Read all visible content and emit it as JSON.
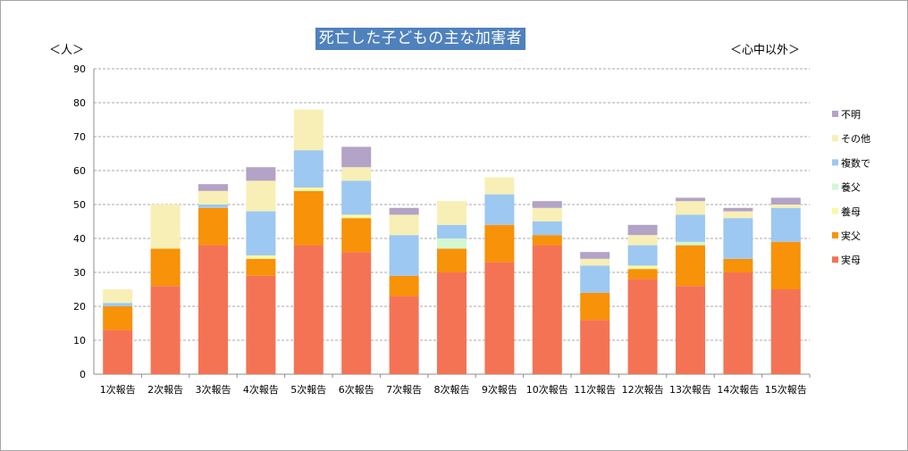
{
  "chart_data": {
    "type": "bar",
    "stacked": true,
    "title": "死亡した子どもの主な加害者",
    "ylabel": "＜人＞",
    "subtitle": "＜心中以外＞",
    "ylim": [
      0,
      90
    ],
    "yticks": [
      0,
      10,
      20,
      30,
      40,
      50,
      60,
      70,
      80,
      90
    ],
    "grid": true,
    "legend_position": "right",
    "categories": [
      "1次報告",
      "2次報告",
      "3次報告",
      "4次報告",
      "5次報告",
      "6次報告",
      "7次報告",
      "8次報告",
      "9次報告",
      "10次報告",
      "11次報告",
      "12次報告",
      "13次報告",
      "14次報告",
      "15次報告"
    ],
    "series": [
      {
        "name": "実母",
        "color": "#f47355",
        "values": [
          13,
          26,
          38,
          29,
          38,
          36,
          23,
          30,
          33,
          38,
          16,
          28,
          26,
          30,
          25
        ]
      },
      {
        "name": "実父",
        "color": "#f79209",
        "values": [
          7,
          11,
          11,
          5,
          16,
          10,
          6,
          7,
          11,
          3,
          8,
          3,
          12,
          4,
          14
        ]
      },
      {
        "name": "養母",
        "color": "#fbf8a6",
        "values": [
          0,
          0,
          0,
          1,
          1,
          1,
          0,
          0,
          0,
          0,
          0,
          1,
          0,
          0,
          0
        ]
      },
      {
        "name": "養父",
        "color": "#d2f7d2",
        "values": [
          0,
          0,
          0,
          0,
          0,
          0,
          0,
          3,
          0,
          0,
          0,
          0,
          1,
          0,
          0
        ]
      },
      {
        "name": "複数で",
        "color": "#9dc8f1",
        "values": [
          1,
          0,
          1,
          13,
          11,
          10,
          12,
          4,
          9,
          4,
          8,
          6,
          8,
          12,
          10
        ]
      },
      {
        "name": "その他",
        "color": "#f7efb5",
        "values": [
          4,
          13,
          4,
          9,
          12,
          4,
          6,
          7,
          5,
          4,
          2,
          3,
          4,
          2,
          1
        ]
      },
      {
        "name": "不明",
        "color": "#b3a3c6",
        "values": [
          0,
          0,
          2,
          4,
          0,
          6,
          2,
          0,
          0,
          2,
          2,
          3,
          1,
          1,
          2
        ]
      }
    ]
  }
}
